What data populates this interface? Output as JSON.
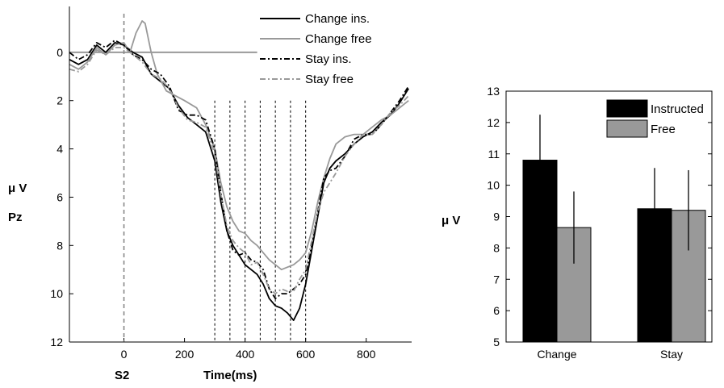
{
  "chart_data": [
    {
      "type": "line",
      "ylabel": "μ V",
      "channel": "Pz",
      "xlabel": "Time(ms)",
      "x_marker_label": "S2",
      "xlim": [
        -180,
        950
      ],
      "ylim_inverted": [
        12,
        -1.9
      ],
      "x_ticks": [
        0,
        200,
        400,
        600,
        800
      ],
      "y_ticks": [
        0,
        2,
        4,
        6,
        8,
        10,
        12
      ],
      "vertical_dashed_lines": [
        300,
        350,
        400,
        450,
        500,
        550,
        600
      ],
      "series": [
        {
          "name": "Change ins.",
          "color": "#000000",
          "dash": "solid",
          "x": [
            -180,
            -150,
            -120,
            -90,
            -60,
            -30,
            0,
            30,
            60,
            90,
            120,
            150,
            180,
            210,
            240,
            270,
            300,
            320,
            340,
            360,
            380,
            400,
            420,
            440,
            460,
            480,
            500,
            520,
            540,
            560,
            580,
            600,
            620,
            640,
            660,
            680,
            700,
            730,
            760,
            790,
            820,
            850,
            880,
            910,
            940
          ],
          "y": [
            0.3,
            0.5,
            0.3,
            -0.3,
            0.0,
            -0.4,
            -0.3,
            0.0,
            0.2,
            0.9,
            1.2,
            1.5,
            2.2,
            2.7,
            3.0,
            3.3,
            4.5,
            6.2,
            7.4,
            8.0,
            8.4,
            8.8,
            9.0,
            9.2,
            9.6,
            10.2,
            10.5,
            10.6,
            10.8,
            11.1,
            10.6,
            9.6,
            8.2,
            6.8,
            5.4,
            4.8,
            4.5,
            4.2,
            3.8,
            3.5,
            3.3,
            2.9,
            2.6,
            2.1,
            1.5
          ]
        },
        {
          "name": "Change free",
          "color": "#999999",
          "dash": "solid",
          "x": [
            -180,
            -150,
            -120,
            -90,
            -60,
            -30,
            0,
            20,
            40,
            60,
            70,
            90,
            110,
            140,
            170,
            200,
            240,
            270,
            300,
            320,
            340,
            360,
            380,
            400,
            420,
            440,
            460,
            480,
            500,
            520,
            540,
            560,
            580,
            600,
            620,
            640,
            660,
            680,
            700,
            730,
            760,
            790,
            820,
            850,
            880,
            910,
            940
          ],
          "y": [
            0.5,
            0.7,
            0.4,
            -0.2,
            0.1,
            -0.3,
            -0.4,
            0.0,
            -0.8,
            -1.3,
            -1.2,
            0.0,
            0.9,
            1.6,
            1.8,
            2.0,
            2.3,
            3.0,
            4.0,
            5.4,
            6.4,
            7.0,
            7.4,
            7.5,
            7.8,
            8.0,
            8.3,
            8.6,
            8.8,
            9.0,
            8.9,
            8.8,
            8.6,
            8.3,
            7.4,
            6.2,
            5.2,
            4.4,
            3.8,
            3.5,
            3.4,
            3.4,
            3.1,
            2.8,
            2.6,
            2.3,
            2.0
          ]
        },
        {
          "name": "Stay ins.",
          "color": "#000000",
          "dash": "dashdot",
          "x": [
            -180,
            -150,
            -120,
            -90,
            -60,
            -30,
            0,
            30,
            60,
            90,
            120,
            150,
            180,
            210,
            240,
            270,
            300,
            320,
            340,
            360,
            380,
            400,
            420,
            440,
            460,
            480,
            500,
            520,
            540,
            560,
            580,
            600,
            620,
            640,
            660,
            680,
            700,
            730,
            760,
            790,
            820,
            850,
            880,
            910,
            940
          ],
          "y": [
            0.0,
            0.3,
            0.1,
            -0.4,
            -0.2,
            -0.5,
            -0.3,
            0.1,
            0.3,
            0.7,
            0.9,
            1.4,
            2.4,
            2.6,
            2.6,
            2.8,
            4.0,
            5.8,
            7.4,
            8.2,
            8.4,
            8.3,
            8.6,
            8.7,
            9.0,
            9.8,
            10.2,
            10.0,
            10.0,
            9.8,
            9.6,
            9.2,
            8.0,
            6.6,
            5.2,
            4.9,
            4.8,
            4.3,
            3.6,
            3.4,
            3.4,
            3.0,
            2.5,
            2.0,
            1.4
          ]
        },
        {
          "name": "Stay free",
          "color": "#999999",
          "dash": "dashdot",
          "x": [
            -180,
            -150,
            -120,
            -90,
            -60,
            -30,
            0,
            30,
            60,
            90,
            120,
            150,
            180,
            210,
            240,
            270,
            300,
            320,
            340,
            360,
            380,
            400,
            420,
            440,
            460,
            480,
            500,
            520,
            540,
            560,
            580,
            600,
            620,
            640,
            660,
            680,
            700,
            730,
            760,
            790,
            820,
            850,
            880,
            910,
            940
          ],
          "y": [
            0.7,
            0.8,
            0.5,
            -0.1,
            0.1,
            -0.2,
            -0.2,
            0.1,
            0.4,
            0.9,
            1.1,
            1.5,
            2.3,
            2.8,
            2.9,
            3.1,
            4.2,
            5.9,
            7.2,
            7.8,
            8.1,
            8.3,
            8.8,
            8.7,
            9.2,
            9.8,
            10.0,
            9.8,
            9.9,
            9.9,
            9.4,
            9.0,
            7.8,
            6.6,
            5.8,
            5.4,
            5.0,
            4.3,
            3.8,
            3.4,
            3.4,
            3.0,
            2.5,
            2.2,
            1.8
          ]
        }
      ],
      "legend": "top-right",
      "zero_line": true
    },
    {
      "type": "bar",
      "ylabel": "μ V",
      "categories": [
        "Change",
        "Stay"
      ],
      "ylim": [
        5,
        13
      ],
      "y_ticks": [
        5,
        6,
        7,
        8,
        9,
        10,
        11,
        12,
        13
      ],
      "series": [
        {
          "name": "Instructed",
          "color": "#000000",
          "values": [
            10.8,
            9.25
          ],
          "error": [
            1.45,
            1.3
          ]
        },
        {
          "name": "Free",
          "color": "#999999",
          "values": [
            8.65,
            9.2
          ],
          "error": [
            1.15,
            1.28
          ]
        }
      ],
      "legend": "top-right"
    }
  ]
}
